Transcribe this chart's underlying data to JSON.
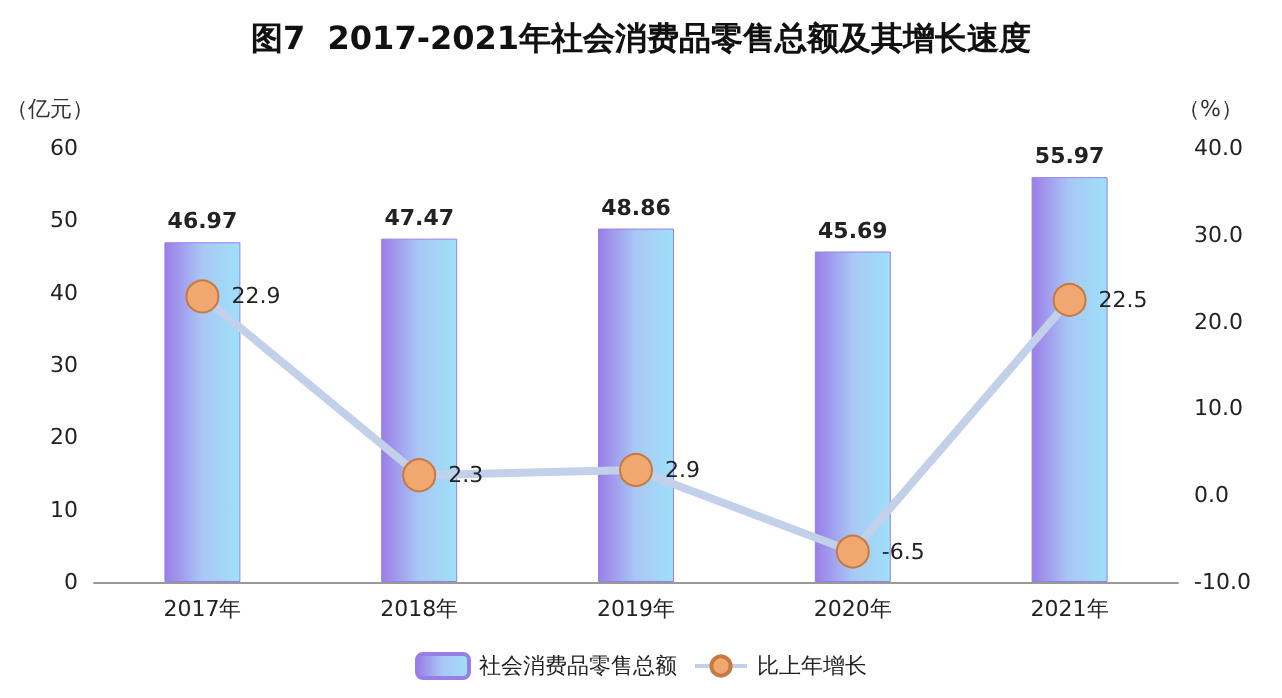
{
  "chart_data": {
    "type": "bar",
    "title": "图7  2017-2021年社会消费品零售总额及其增长速度",
    "categories": [
      "2017年",
      "2018年",
      "2019年",
      "2020年",
      "2021年"
    ],
    "series": [
      {
        "name": "社会消费品零售总额",
        "color": "#9a7ee8",
        "values": [
          46.97,
          47.47,
          48.86,
          45.69,
          55.97
        ]
      },
      {
        "name": "比上年增长",
        "type": "line",
        "axis": "y2",
        "color": "#c3d0ea",
        "marker": "circle",
        "values": [
          22.9,
          2.3,
          2.9,
          -6.5,
          22.5
        ]
      }
    ],
    "ylabel": "（亿元）",
    "y2label": "（%）",
    "ylim": [
      0,
      60
    ],
    "yticks": [
      0,
      10,
      20,
      30,
      40,
      50,
      60
    ],
    "y2lim": [
      -10,
      40
    ],
    "y2ticks": [
      {
        "value": -10,
        "label": "-10.0"
      },
      {
        "value": 0,
        "label": "0.0"
      },
      {
        "value": 10,
        "label": "10.0"
      },
      {
        "value": 20,
        "label": "20.0"
      },
      {
        "value": 30,
        "label": "30.0"
      },
      {
        "value": 40,
        "label": "40.0"
      }
    ],
    "data_labels": true,
    "legend": "bottom",
    "grid": false
  }
}
